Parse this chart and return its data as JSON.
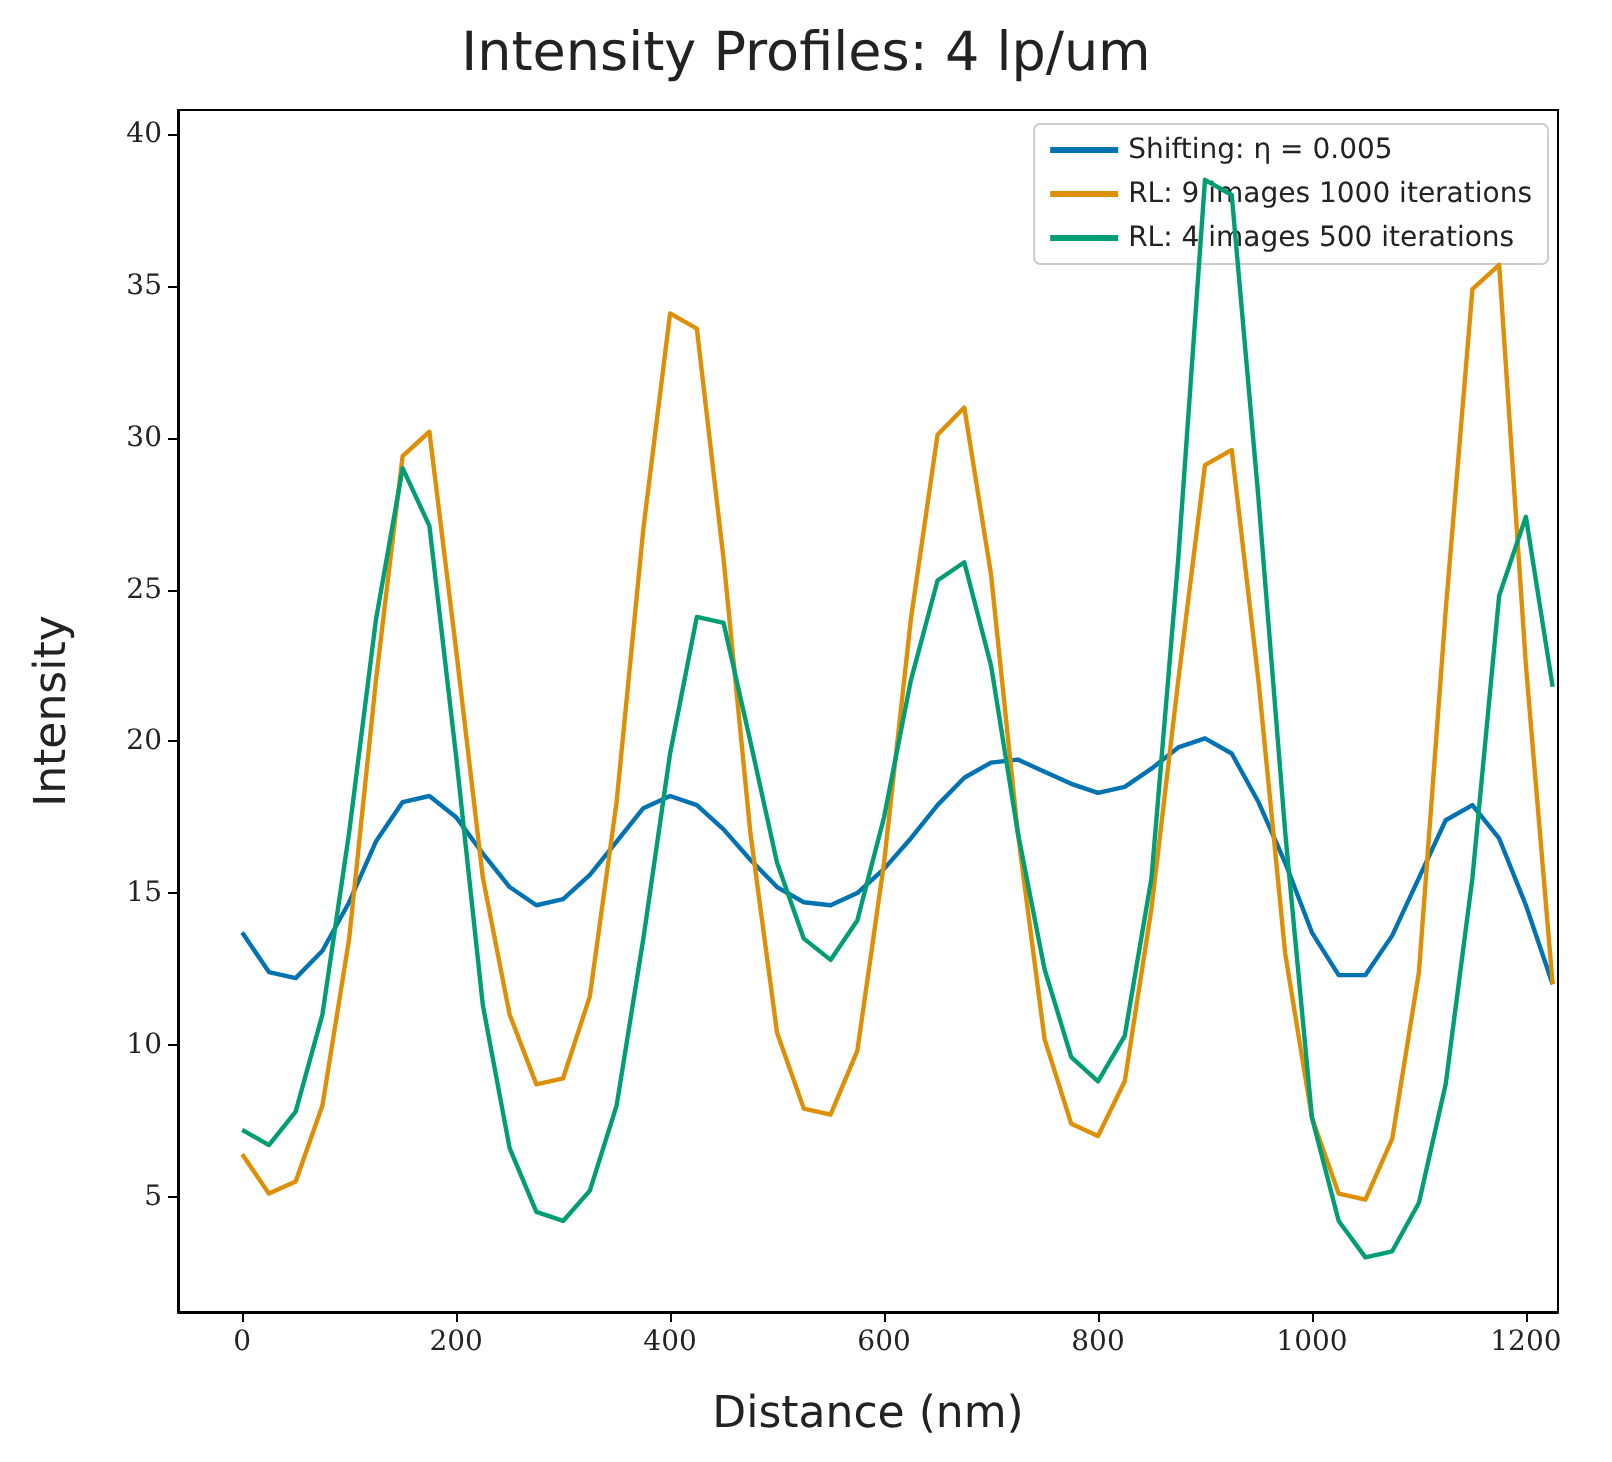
{
  "chart_data": {
    "type": "line",
    "title": "Intensity Profiles: 4 lp/um",
    "xlabel": "Distance (nm)",
    "ylabel": "Intensity",
    "x": [
      0,
      25,
      50,
      75,
      100,
      125,
      150,
      175,
      200,
      225,
      250,
      275,
      300,
      325,
      350,
      375,
      400,
      425,
      450,
      475,
      500,
      525,
      550,
      575,
      600,
      625,
      650,
      675,
      700,
      725,
      750,
      775,
      800,
      825,
      850,
      875,
      900,
      925,
      950,
      975,
      1000,
      1025,
      1050,
      1075,
      1100,
      1125,
      1150,
      1175,
      1200,
      1225
    ],
    "series": [
      {
        "name": "Shifting: η = 0.005",
        "color": "#0173b2",
        "values": [
          13.7,
          12.4,
          12.2,
          13.1,
          14.7,
          16.7,
          18.0,
          18.2,
          17.5,
          16.3,
          15.2,
          14.6,
          14.8,
          15.6,
          16.7,
          17.8,
          18.2,
          17.9,
          17.1,
          16.1,
          15.2,
          14.7,
          14.6,
          15.0,
          15.8,
          16.8,
          17.9,
          18.8,
          19.3,
          19.4,
          19.0,
          18.6,
          18.3,
          18.5,
          19.1,
          19.8,
          20.1,
          19.6,
          18.0,
          16.0,
          13.7,
          12.3,
          12.3,
          13.6,
          15.5,
          17.4,
          17.9,
          16.8,
          14.6,
          12.0
        ]
      },
      {
        "name": "RL: 9 images 1000 iterations",
        "color": "#de8f05",
        "values": [
          6.4,
          5.1,
          5.5,
          8.0,
          13.5,
          22,
          29.4,
          30.2,
          23,
          15.5,
          11.0,
          8.7,
          8.9,
          11.6,
          18,
          27,
          34.1,
          33.6,
          26,
          17,
          10.4,
          7.9,
          7.7,
          9.8,
          16,
          24,
          30.1,
          31.0,
          25.5,
          17,
          10.2,
          7.4,
          7.0,
          8.8,
          14.5,
          22,
          29.1,
          29.6,
          22,
          13,
          7.6,
          5.1,
          4.9,
          6.9,
          12.4,
          24.3,
          34.9,
          35.7,
          22.5,
          12.0
        ]
      },
      {
        "name": "RL: 4 images 500 iterations",
        "color": "#029e73",
        "values": [
          7.2,
          6.7,
          7.8,
          11,
          17,
          24,
          29,
          27.1,
          19.5,
          11.3,
          6.6,
          4.5,
          4.2,
          5.2,
          8,
          13.5,
          19.6,
          24.1,
          23.9,
          20,
          16,
          13.5,
          12.8,
          14.1,
          17.5,
          22,
          25.3,
          25.9,
          22.5,
          17,
          12.5,
          9.6,
          8.8,
          10.3,
          15.5,
          26,
          38.5,
          38,
          28,
          17,
          7.6,
          4.2,
          3.0,
          3.2,
          4.8,
          8.7,
          15.5,
          24.8,
          27.4,
          21.8
        ]
      }
    ],
    "xlim": [
      -60,
      1230
    ],
    "xticks": [
      0,
      200,
      400,
      600,
      800,
      1000,
      1200
    ],
    "ylim": [
      1.2,
      40.8
    ],
    "yticks": [
      5,
      10,
      15,
      20,
      25,
      30,
      35,
      40
    ],
    "grid": false,
    "legend": "top right",
    "marker": "none",
    "line_style": "solid"
  }
}
